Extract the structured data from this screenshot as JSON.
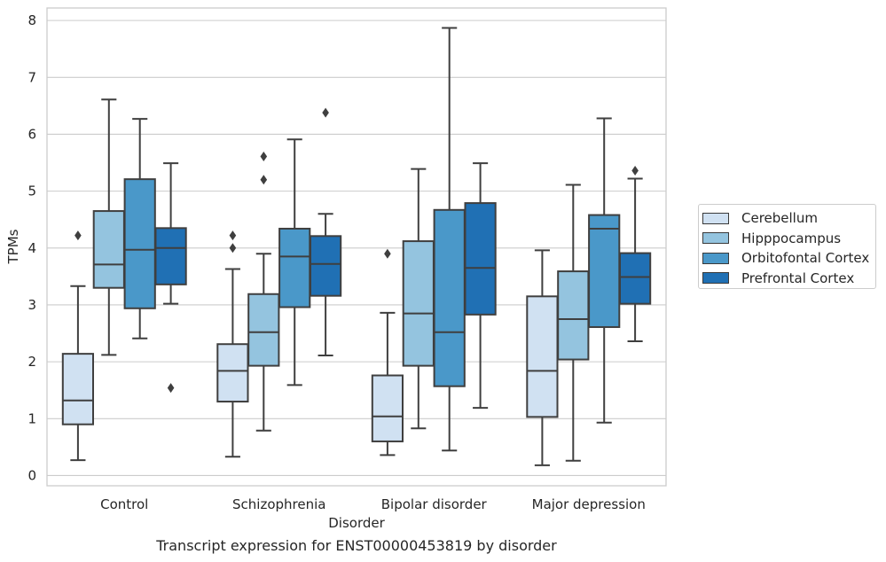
{
  "caption": "Transcript expression for ENST00000453819 by disorder",
  "chart_data": {
    "type": "box",
    "xlabel": "Disorder",
    "ylabel": "TPMs",
    "ylim": [
      -0.18,
      8.22
    ],
    "yticks": [
      0,
      1,
      2,
      3,
      4,
      5,
      6,
      7,
      8
    ],
    "grid": "horizontal",
    "legend_position": "center-right outside",
    "categories": [
      "Control",
      "Schizophrenia",
      "Bipolar disorder",
      "Major depression"
    ],
    "series": [
      {
        "name": "Cerebellum",
        "color": "#d0e1f2",
        "boxes": [
          {
            "whisker_low": 0.27,
            "q1": 0.9,
            "median": 1.32,
            "q3": 2.14,
            "whisker_high": 3.33,
            "outliers": [
              4.22
            ]
          },
          {
            "whisker_low": 0.33,
            "q1": 1.3,
            "median": 1.84,
            "q3": 2.31,
            "whisker_high": 3.63,
            "outliers": [
              4.0,
              4.22
            ]
          },
          {
            "whisker_low": 0.36,
            "q1": 0.6,
            "median": 1.04,
            "q3": 1.76,
            "whisker_high": 2.86,
            "outliers": [
              3.9
            ]
          },
          {
            "whisker_low": 0.18,
            "q1": 1.03,
            "median": 1.84,
            "q3": 3.15,
            "whisker_high": 3.96,
            "outliers": []
          }
        ]
      },
      {
        "name": "Hipppocampus",
        "color": "#94c4df",
        "boxes": [
          {
            "whisker_low": 2.12,
            "q1": 3.3,
            "median": 3.71,
            "q3": 4.65,
            "whisker_high": 6.61,
            "outliers": []
          },
          {
            "whisker_low": 0.79,
            "q1": 1.93,
            "median": 2.52,
            "q3": 3.19,
            "whisker_high": 3.9,
            "outliers": [
              5.2,
              5.61
            ]
          },
          {
            "whisker_low": 0.83,
            "q1": 1.93,
            "median": 2.85,
            "q3": 4.12,
            "whisker_high": 5.39,
            "outliers": []
          },
          {
            "whisker_low": 0.26,
            "q1": 2.04,
            "median": 2.75,
            "q3": 3.59,
            "whisker_high": 5.11,
            "outliers": []
          }
        ]
      },
      {
        "name": "Orbitofontal Cortex",
        "color": "#4a98c9",
        "boxes": [
          {
            "whisker_low": 2.41,
            "q1": 2.94,
            "median": 3.97,
            "q3": 5.21,
            "whisker_high": 6.27,
            "outliers": []
          },
          {
            "whisker_low": 1.59,
            "q1": 2.96,
            "median": 3.85,
            "q3": 4.34,
            "whisker_high": 5.91,
            "outliers": []
          },
          {
            "whisker_low": 0.44,
            "q1": 1.57,
            "median": 2.52,
            "q3": 4.67,
            "whisker_high": 7.87,
            "outliers": []
          },
          {
            "whisker_low": 0.93,
            "q1": 2.61,
            "median": 4.34,
            "q3": 4.58,
            "whisker_high": 6.28,
            "outliers": []
          }
        ]
      },
      {
        "name": "Prefrontal Cortex",
        "color": "#2070b4",
        "boxes": [
          {
            "whisker_low": 3.02,
            "q1": 3.36,
            "median": 4.0,
            "q3": 4.35,
            "whisker_high": 5.49,
            "outliers": [
              1.54
            ]
          },
          {
            "whisker_low": 2.11,
            "q1": 3.16,
            "median": 3.72,
            "q3": 4.21,
            "whisker_high": 4.6,
            "outliers": [
              6.38
            ]
          },
          {
            "whisker_low": 1.19,
            "q1": 2.83,
            "median": 3.65,
            "q3": 4.79,
            "whisker_high": 5.49,
            "outliers": []
          },
          {
            "whisker_low": 2.36,
            "q1": 3.02,
            "median": 3.49,
            "q3": 3.91,
            "whisker_high": 5.22,
            "outliers": [
              5.36
            ]
          }
        ]
      }
    ]
  }
}
